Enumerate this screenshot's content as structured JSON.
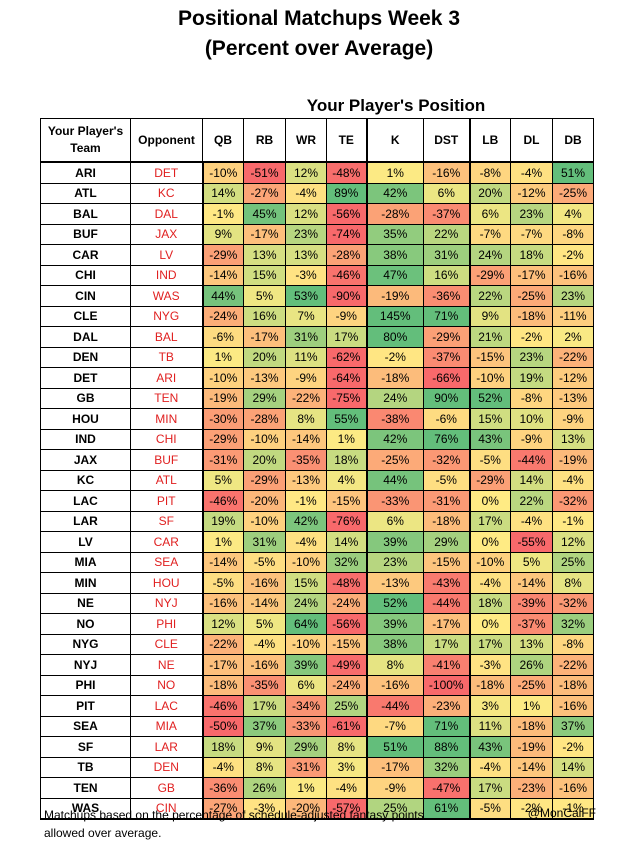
{
  "title_line1": "Positional Matchups Week 3",
  "title_line2": "(Percent over Average)",
  "subheader": "Your Player's Position",
  "footnote": "Matchups based on the percentage of schedule-adjusted fantasy points allowed over average.",
  "credit": "@MonCalFF",
  "chart_data": {
    "type": "table",
    "row_header": "Your Player's Team",
    "opponent_header": "Opponent",
    "columns": [
      "QB",
      "RB",
      "WR",
      "TE",
      "K",
      "DST",
      "LB",
      "DL",
      "DB"
    ],
    "rows": [
      {
        "team": "ARI",
        "opp": "DET",
        "values": [
          "-10%",
          "-51%",
          "12%",
          "-48%",
          "1%",
          "-16%",
          "-8%",
          "-4%",
          "51%"
        ]
      },
      {
        "team": "ATL",
        "opp": "KC",
        "values": [
          "14%",
          "-27%",
          "-4%",
          "89%",
          "42%",
          "6%",
          "20%",
          "-12%",
          "-25%"
        ]
      },
      {
        "team": "BAL",
        "opp": "DAL",
        "values": [
          "-1%",
          "45%",
          "12%",
          "-56%",
          "-28%",
          "-37%",
          "6%",
          "23%",
          "4%"
        ]
      },
      {
        "team": "BUF",
        "opp": "JAX",
        "values": [
          "9%",
          "-17%",
          "23%",
          "-74%",
          "35%",
          "22%",
          "-7%",
          "-7%",
          "-8%"
        ]
      },
      {
        "team": "CAR",
        "opp": "LV",
        "values": [
          "-29%",
          "13%",
          "13%",
          "-28%",
          "38%",
          "31%",
          "24%",
          "18%",
          "-2%"
        ]
      },
      {
        "team": "CHI",
        "opp": "IND",
        "values": [
          "-14%",
          "15%",
          "-3%",
          "-46%",
          "47%",
          "16%",
          "-29%",
          "-17%",
          "-16%"
        ]
      },
      {
        "team": "CIN",
        "opp": "WAS",
        "values": [
          "44%",
          "5%",
          "53%",
          "-90%",
          "-19%",
          "-36%",
          "22%",
          "-25%",
          "23%"
        ]
      },
      {
        "team": "CLE",
        "opp": "NYG",
        "values": [
          "-24%",
          "16%",
          "7%",
          "-9%",
          "145%",
          "71%",
          "9%",
          "-18%",
          "-11%"
        ]
      },
      {
        "team": "DAL",
        "opp": "BAL",
        "values": [
          "-6%",
          "-17%",
          "31%",
          "17%",
          "80%",
          "-29%",
          "21%",
          "-2%",
          "2%"
        ]
      },
      {
        "team": "DEN",
        "opp": "TB",
        "values": [
          "1%",
          "20%",
          "11%",
          "-62%",
          "-2%",
          "-37%",
          "-15%",
          "23%",
          "-22%"
        ]
      },
      {
        "team": "DET",
        "opp": "ARI",
        "values": [
          "-10%",
          "-13%",
          "-9%",
          "-64%",
          "-18%",
          "-66%",
          "-10%",
          "19%",
          "-12%"
        ]
      },
      {
        "team": "GB",
        "opp": "TEN",
        "values": [
          "-19%",
          "29%",
          "-22%",
          "-75%",
          "24%",
          "90%",
          "52%",
          "-8%",
          "-13%"
        ]
      },
      {
        "team": "HOU",
        "opp": "MIN",
        "values": [
          "-30%",
          "-28%",
          "8%",
          "55%",
          "-38%",
          "-6%",
          "15%",
          "10%",
          "-9%"
        ]
      },
      {
        "team": "IND",
        "opp": "CHI",
        "values": [
          "-29%",
          "-10%",
          "-14%",
          "1%",
          "42%",
          "76%",
          "43%",
          "-9%",
          "13%"
        ]
      },
      {
        "team": "JAX",
        "opp": "BUF",
        "values": [
          "-31%",
          "20%",
          "-35%",
          "18%",
          "-25%",
          "-32%",
          "-5%",
          "-44%",
          "-19%"
        ]
      },
      {
        "team": "KC",
        "opp": "ATL",
        "values": [
          "5%",
          "-29%",
          "-13%",
          "4%",
          "44%",
          "-5%",
          "-29%",
          "14%",
          "-4%"
        ]
      },
      {
        "team": "LAC",
        "opp": "PIT",
        "values": [
          "-46%",
          "-20%",
          "-1%",
          "-15%",
          "-33%",
          "-31%",
          "0%",
          "22%",
          "-32%"
        ]
      },
      {
        "team": "LAR",
        "opp": "SF",
        "values": [
          "19%",
          "-10%",
          "42%",
          "-76%",
          "6%",
          "-18%",
          "17%",
          "-4%",
          "-1%"
        ]
      },
      {
        "team": "LV",
        "opp": "CAR",
        "values": [
          "1%",
          "31%",
          "-4%",
          "14%",
          "39%",
          "29%",
          "0%",
          "-55%",
          "12%"
        ]
      },
      {
        "team": "MIA",
        "opp": "SEA",
        "values": [
          "-14%",
          "-5%",
          "-10%",
          "32%",
          "23%",
          "-15%",
          "-10%",
          "5%",
          "25%"
        ]
      },
      {
        "team": "MIN",
        "opp": "HOU",
        "values": [
          "-5%",
          "-16%",
          "15%",
          "-48%",
          "-13%",
          "-43%",
          "-4%",
          "-14%",
          "8%"
        ]
      },
      {
        "team": "NE",
        "opp": "NYJ",
        "values": [
          "-16%",
          "-14%",
          "24%",
          "-24%",
          "52%",
          "-44%",
          "18%",
          "-39%",
          "-32%"
        ]
      },
      {
        "team": "NO",
        "opp": "PHI",
        "values": [
          "12%",
          "5%",
          "64%",
          "-56%",
          "39%",
          "-17%",
          "0%",
          "-37%",
          "32%"
        ]
      },
      {
        "team": "NYG",
        "opp": "CLE",
        "values": [
          "-22%",
          "-4%",
          "-10%",
          "-15%",
          "38%",
          "17%",
          "17%",
          "13%",
          "-8%"
        ]
      },
      {
        "team": "NYJ",
        "opp": "NE",
        "values": [
          "-17%",
          "-16%",
          "39%",
          "-49%",
          "8%",
          "-41%",
          "-3%",
          "26%",
          "-22%"
        ]
      },
      {
        "team": "PHI",
        "opp": "NO",
        "values": [
          "-18%",
          "-35%",
          "6%",
          "-24%",
          "-16%",
          "-100%",
          "-18%",
          "-25%",
          "-18%"
        ]
      },
      {
        "team": "PIT",
        "opp": "LAC",
        "values": [
          "-46%",
          "17%",
          "-34%",
          "25%",
          "-44%",
          "-23%",
          "3%",
          "1%",
          "-16%"
        ]
      },
      {
        "team": "SEA",
        "opp": "MIA",
        "values": [
          "-50%",
          "37%",
          "-33%",
          "-61%",
          "-7%",
          "71%",
          "11%",
          "-18%",
          "37%"
        ]
      },
      {
        "team": "SF",
        "opp": "LAR",
        "values": [
          "18%",
          "9%",
          "29%",
          "8%",
          "51%",
          "88%",
          "43%",
          "-19%",
          "-2%"
        ]
      },
      {
        "team": "TB",
        "opp": "DEN",
        "values": [
          "-4%",
          "8%",
          "-31%",
          "3%",
          "-17%",
          "32%",
          "-4%",
          "-14%",
          "14%"
        ]
      },
      {
        "team": "TEN",
        "opp": "GB",
        "values": [
          "-36%",
          "26%",
          "1%",
          "-4%",
          "-9%",
          "-47%",
          "17%",
          "-23%",
          "-16%"
        ]
      },
      {
        "team": "WAS",
        "opp": "CIN",
        "values": [
          "-27%",
          "-3%",
          "-20%",
          "-57%",
          "25%",
          "61%",
          "-5%",
          "-2%",
          "-1%"
        ]
      }
    ],
    "color_scale": {
      "low": "#f8696b",
      "mid": "#ffeb84",
      "high": "#63be7b"
    }
  }
}
